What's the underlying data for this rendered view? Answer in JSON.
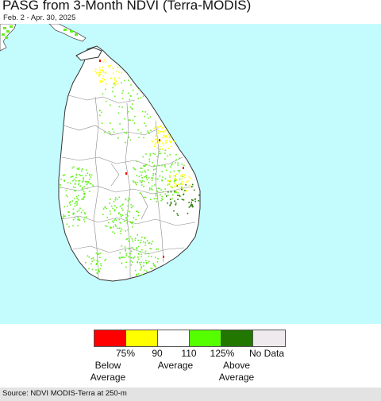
{
  "header": {
    "title": "PASG from 3-Month NDVI (Terra-MODIS)",
    "subtitle": "Feb. 2 - Apr. 30, 2025"
  },
  "map": {
    "colors": {
      "ocean": "#c4fbfd",
      "land": "#ffffff",
      "border": "#555555",
      "green_light": "#66ee22",
      "green_dark": "#227700",
      "yellow": "#ffff00",
      "red": "#ff0000"
    }
  },
  "legend": {
    "colors": [
      "#ff0000",
      "#ffff00",
      "#ffffff",
      "#55ff00",
      "#227700",
      "#eeeaee"
    ],
    "ticks": [
      "75%",
      "90",
      "110",
      "125%",
      "No Data"
    ],
    "below_label": "Below\nAverage",
    "average_label": "Average",
    "above_label": "Above\nAverage"
  },
  "footer": {
    "source": "Source: NDVI MODIS-Terra at 250-m"
  }
}
